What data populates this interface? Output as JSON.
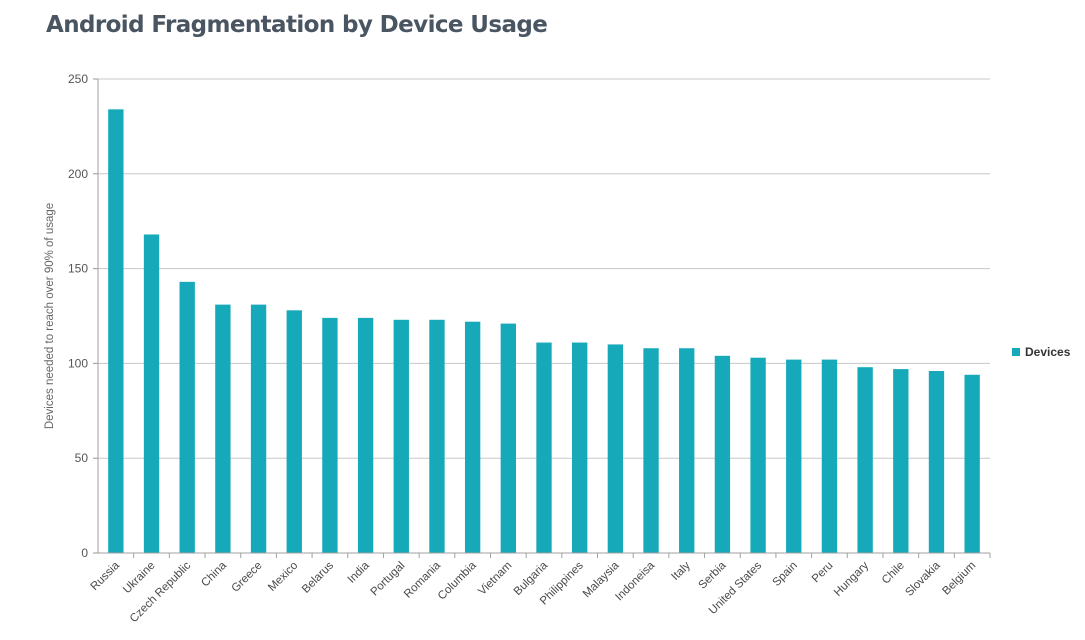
{
  "chart_data": {
    "type": "bar",
    "title": "Android Fragmentation by Device Usage",
    "ylabel": "Devices needed to reach over 90% of usage",
    "xlabel": "",
    "ylim": [
      0,
      250
    ],
    "yticks": [
      0,
      50,
      100,
      150,
      200,
      250
    ],
    "grid": true,
    "legend_position": "right",
    "bar_color": "#16a9b9",
    "categories": [
      "Russia",
      "Ukraine",
      "Czech Republic",
      "China",
      "Greece",
      "Mexico",
      "Belarus",
      "India",
      "Portugal",
      "Romania",
      "Columbia",
      "Vietnam",
      "Bulgaria",
      "Philippines",
      "Malaysia",
      "Indoneisa",
      "Italy",
      "Serbia",
      "United States",
      "Spain",
      "Peru",
      "Hungary",
      "Chile",
      "Slovakia",
      "Belgium"
    ],
    "series": [
      {
        "name": "Devices",
        "values": [
          234,
          168,
          143,
          131,
          131,
          128,
          124,
          124,
          123,
          123,
          122,
          121,
          111,
          111,
          110,
          108,
          108,
          104,
          103,
          102,
          102,
          98,
          97,
          96,
          94
        ]
      }
    ]
  }
}
